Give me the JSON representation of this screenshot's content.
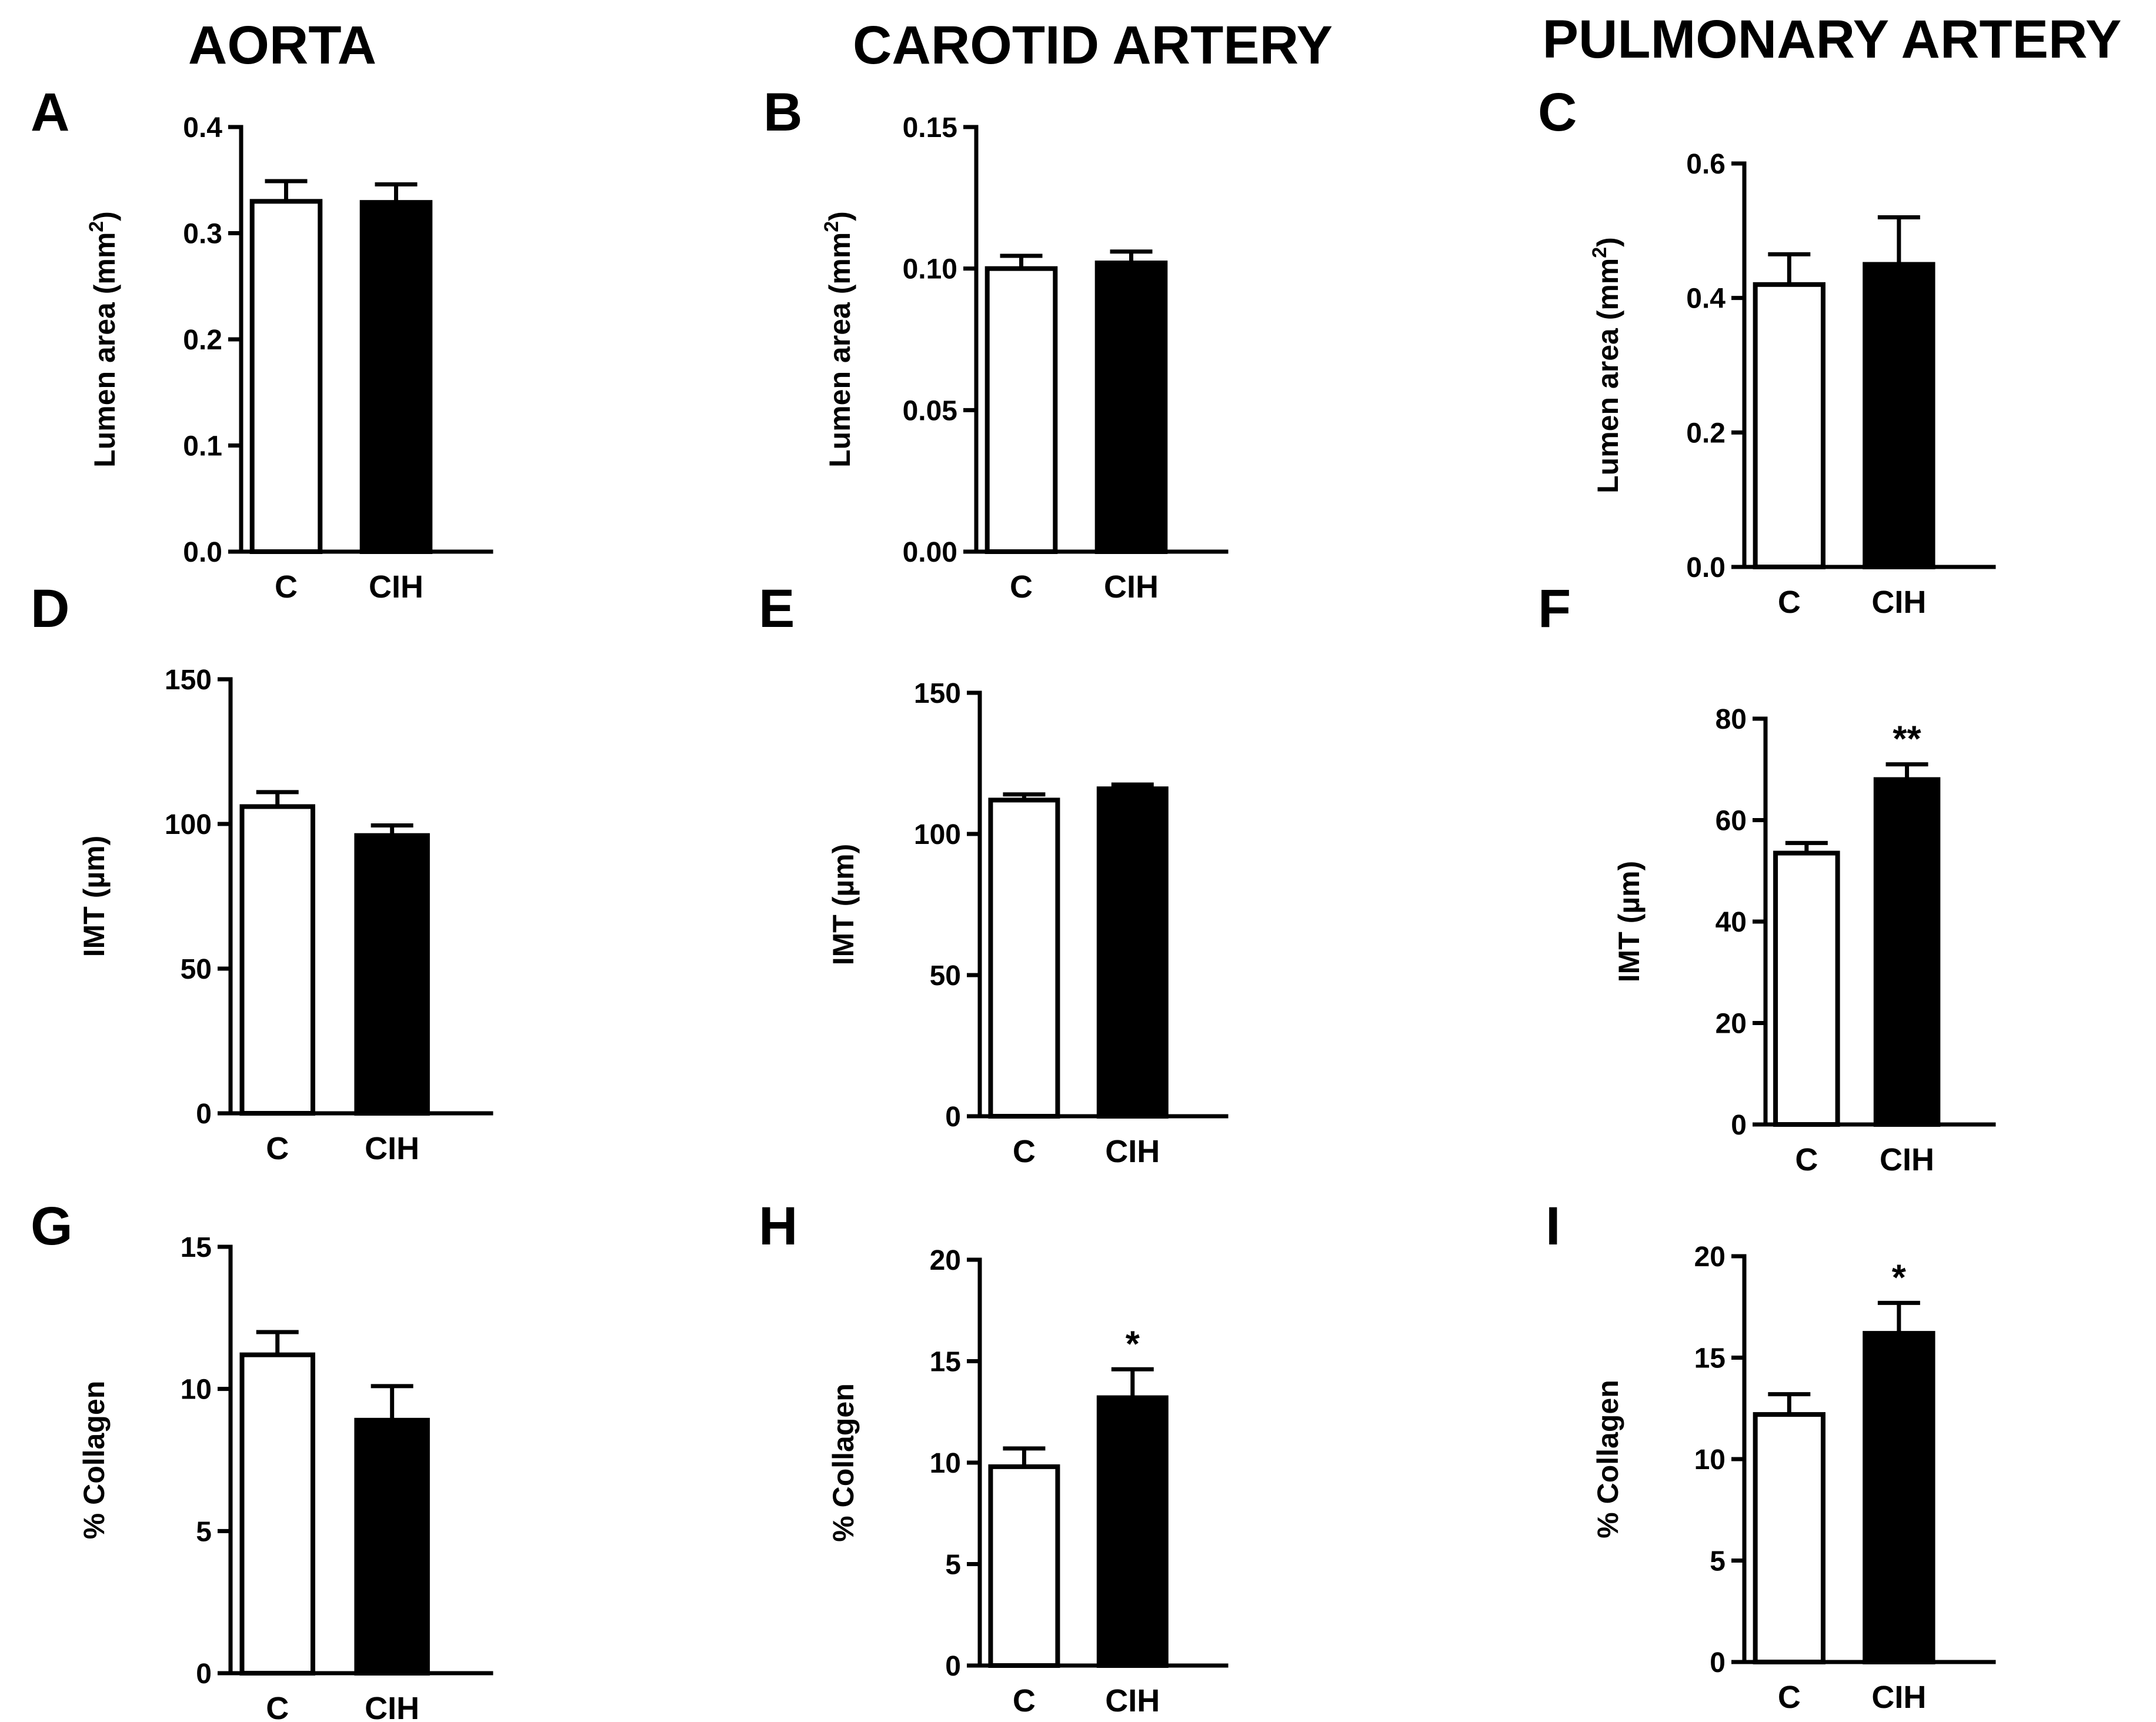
{
  "figure": {
    "column_titles": [
      "AORTA",
      "CAROTID ARTERY",
      "PULMONARY ARTERY"
    ]
  },
  "chart_data": [
    {
      "panel": "A",
      "type": "bar",
      "categories": [
        "C",
        "CIH"
      ],
      "values": [
        0.33,
        0.329
      ],
      "errors": [
        0.019,
        0.017
      ],
      "colors": [
        "#ffffff",
        "#000000"
      ],
      "ylabel": "Lumen area (mm2)",
      "ylim": [
        0,
        0.4
      ],
      "yticks": [
        0,
        0.1,
        0.2,
        0.3,
        0.4
      ],
      "ytick_labels": [
        "0.0",
        "0.1",
        "0.2",
        "0.3",
        "0.4"
      ],
      "significance": [
        "",
        ""
      ]
    },
    {
      "panel": "B",
      "type": "bar",
      "categories": [
        "C",
        "CIH"
      ],
      "values": [
        0.1,
        0.102
      ],
      "errors": [
        0.0045,
        0.004
      ],
      "colors": [
        "#ffffff",
        "#000000"
      ],
      "ylabel": "Lumen area (mm2)",
      "ylim": [
        0,
        0.15
      ],
      "yticks": [
        0,
        0.05,
        0.1,
        0.15
      ],
      "ytick_labels": [
        "0.00",
        "0.05",
        "0.10",
        "0.15"
      ],
      "significance": [
        "",
        ""
      ]
    },
    {
      "panel": "C",
      "type": "bar",
      "categories": [
        "C",
        "CIH"
      ],
      "values": [
        0.42,
        0.45
      ],
      "errors": [
        0.045,
        0.07
      ],
      "colors": [
        "#ffffff",
        "#000000"
      ],
      "ylabel": "Lumen area (mm2)",
      "ylim": [
        0,
        0.6
      ],
      "yticks": [
        0,
        0.2,
        0.4,
        0.6
      ],
      "ytick_labels": [
        "0.0",
        "0.2",
        "0.4",
        "0.6"
      ],
      "significance": [
        "",
        ""
      ]
    },
    {
      "panel": "D",
      "type": "bar",
      "categories": [
        "C",
        "CIH"
      ],
      "values": [
        106,
        96
      ],
      "errors": [
        5,
        3.5
      ],
      "colors": [
        "#ffffff",
        "#000000"
      ],
      "ylabel": "IMT (µm)",
      "ylim": [
        0,
        150
      ],
      "yticks": [
        0,
        50,
        100,
        150
      ],
      "ytick_labels": [
        "0",
        "50",
        "100",
        "150"
      ],
      "significance": [
        "",
        ""
      ]
    },
    {
      "panel": "E",
      "type": "bar",
      "categories": [
        "C",
        "CIH"
      ],
      "values": [
        112,
        116
      ],
      "errors": [
        2,
        1.5
      ],
      "colors": [
        "#ffffff",
        "#000000"
      ],
      "ylabel": "IMT (µm)",
      "ylim": [
        0,
        150
      ],
      "yticks": [
        0,
        50,
        100,
        150
      ],
      "ytick_labels": [
        "0",
        "50",
        "100",
        "150"
      ],
      "significance": [
        "",
        ""
      ]
    },
    {
      "panel": "F",
      "type": "bar",
      "categories": [
        "C",
        "CIH"
      ],
      "values": [
        53.5,
        68
      ],
      "errors": [
        2,
        3
      ],
      "colors": [
        "#ffffff",
        "#000000"
      ],
      "ylabel": "IMT (µm)",
      "ylim": [
        0,
        80
      ],
      "yticks": [
        0,
        20,
        40,
        60,
        80
      ],
      "ytick_labels": [
        "0",
        "20",
        "40",
        "60",
        "80"
      ],
      "significance": [
        "",
        "**"
      ]
    },
    {
      "panel": "G",
      "type": "bar",
      "categories": [
        "C",
        "CIH"
      ],
      "values": [
        11.2,
        8.9
      ],
      "errors": [
        0.8,
        1.2
      ],
      "colors": [
        "#ffffff",
        "#000000"
      ],
      "ylabel": "% Collagen",
      "ylim": [
        0,
        15
      ],
      "yticks": [
        0,
        5,
        10,
        15
      ],
      "ytick_labels": [
        "0",
        "5",
        "10",
        "15"
      ],
      "significance": [
        "",
        ""
      ]
    },
    {
      "panel": "H",
      "type": "bar",
      "categories": [
        "C",
        "CIH"
      ],
      "values": [
        9.8,
        13.2
      ],
      "errors": [
        0.9,
        1.4
      ],
      "colors": [
        "#ffffff",
        "#000000"
      ],
      "ylabel": "% Collagen",
      "ylim": [
        0,
        20
      ],
      "yticks": [
        0,
        5,
        10,
        15,
        20
      ],
      "ytick_labels": [
        "0",
        "5",
        "10",
        "15",
        "20"
      ],
      "significance": [
        "",
        "*"
      ]
    },
    {
      "panel": "I",
      "type": "bar",
      "categories": [
        "C",
        "CIH"
      ],
      "values": [
        12.2,
        16.2
      ],
      "errors": [
        1,
        1.5
      ],
      "colors": [
        "#ffffff",
        "#000000"
      ],
      "ylabel": "% Collagen",
      "ylim": [
        0,
        20
      ],
      "yticks": [
        0,
        5,
        10,
        15,
        20
      ],
      "ytick_labels": [
        "0",
        "5",
        "10",
        "15",
        "20"
      ],
      "significance": [
        "",
        "*"
      ]
    }
  ]
}
